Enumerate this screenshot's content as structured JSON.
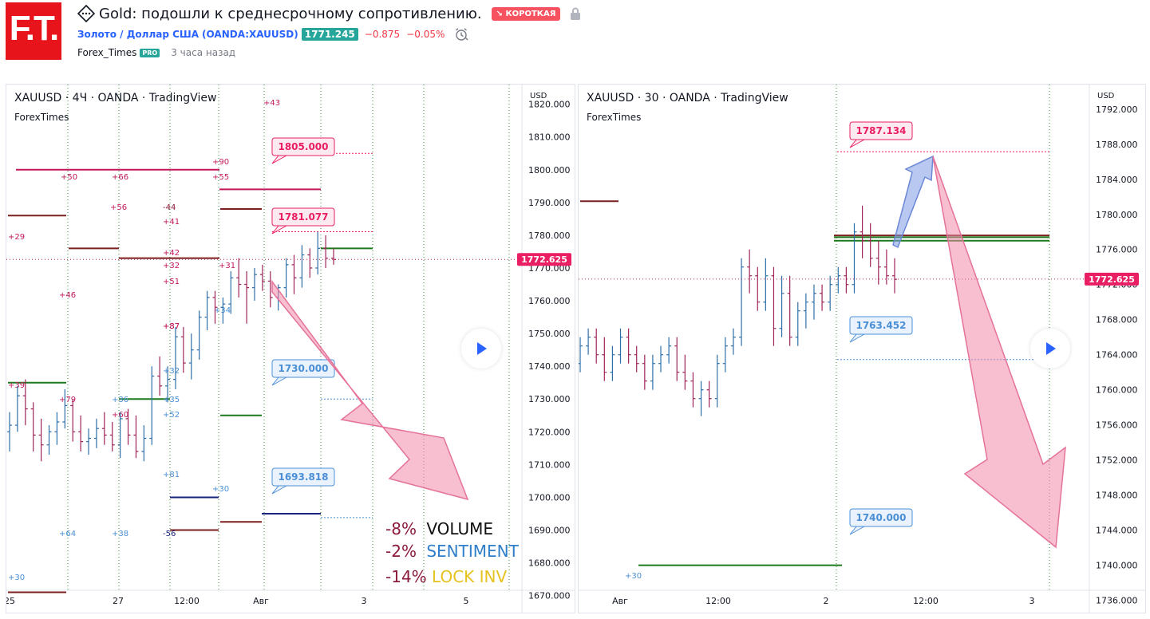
{
  "logo_text": "F.T.",
  "idea": {
    "title": "Gold: подошли к среднесрочному сопротивлению.",
    "badge": "↘ КОРОТКАЯ",
    "symbol_name": "Золото / Доллар США",
    "symbol_code": "(OANDA:XAUUSD)",
    "price": "1771.245",
    "change": "−0.875",
    "change_pct": "−0.05%",
    "author": "Forex_Times",
    "author_badge": "PRO",
    "published": "3 часа назад"
  },
  "colors": {
    "logo": "#e8141c",
    "badge_short": "#f7525f",
    "price_up": "#26a69a",
    "down": "#f23645",
    "link": "#2962ff",
    "arrow_pink": "#f18aaa",
    "arrow_blue": "#7f9be6"
  },
  "chart_data": [
    {
      "type": "candlestick",
      "title": "XAUUSD · 4Ч · OANDA · TradingView",
      "subtitle": "ForexTimes",
      "currency": "USD",
      "y_ticks": [
        "1820.000",
        "1810.000",
        "1800.000",
        "1790.000",
        "1780.000",
        "1770.000",
        "1760.000",
        "1750.000",
        "1740.000",
        "1730.000",
        "1720.000",
        "1710.000",
        "1700.000",
        "1690.000",
        "1680.000",
        "1670.000"
      ],
      "ylim": [
        1664.8,
        1826.0
      ],
      "x_ticks": [
        "25",
        "27",
        "12:00",
        "Авг",
        "3",
        "5"
      ],
      "last_price_label": "1772.625",
      "last_price": 1772.625,
      "price_callouts": [
        {
          "label": "1805.000",
          "value": 1805.0
        },
        {
          "label": "1781.077",
          "value": 1781.077
        },
        {
          "label": "1730.000",
          "value": 1730.0
        },
        {
          "label": "1693.818",
          "value": 1693.818
        }
      ],
      "level_numbers": [
        "+50",
        "+66",
        "+55",
        "+90",
        "+43",
        "+56",
        "-44",
        "+41",
        "+29",
        "+42",
        "+32",
        "+51",
        "+31",
        "+46",
        "+34",
        "+37",
        "+87",
        "+32",
        "+39",
        "+79",
        "+36",
        "+35",
        "+60",
        "+52",
        "+81",
        "+30",
        "+64",
        "+38",
        "-56",
        "+30"
      ],
      "stats": [
        {
          "pct": "-8%",
          "label": "VOLUME"
        },
        {
          "pct": "-2%",
          "label": "SENTIMENT"
        },
        {
          "pct": "-14%",
          "label": "LOCK INV"
        }
      ],
      "series": [
        {
          "name": "",
          "ohlc": [
            [
              1720,
              1726,
              1714,
              1722
            ],
            [
              1722,
              1734,
              1720,
              1731
            ],
            [
              1731,
              1736,
              1722,
              1727
            ],
            [
              1727,
              1729,
              1714,
              1719
            ],
            [
              1719,
              1724,
              1711,
              1716
            ],
            [
              1716,
              1722,
              1713,
              1720
            ],
            [
              1720,
              1726,
              1716,
              1723
            ],
            [
              1723,
              1733,
              1721,
              1728
            ],
            [
              1728,
              1730,
              1717,
              1720
            ],
            [
              1720,
              1725,
              1714,
              1717
            ],
            [
              1717,
              1721,
              1713,
              1718
            ],
            [
              1718,
              1724,
              1715,
              1721
            ],
            [
              1721,
              1726,
              1716,
              1719
            ],
            [
              1719,
              1723,
              1714,
              1716
            ],
            [
              1716,
              1726,
              1712,
              1724
            ],
            [
              1724,
              1727,
              1716,
              1719
            ],
            [
              1719,
              1725,
              1712,
              1714
            ],
            [
              1714,
              1722,
              1711,
              1718
            ],
            [
              1718,
              1740,
              1716,
              1737
            ],
            [
              1737,
              1743,
              1731,
              1734
            ],
            [
              1734,
              1740,
              1729,
              1736
            ],
            [
              1736,
              1752,
              1733,
              1749
            ],
            [
              1749,
              1752,
              1738,
              1741
            ],
            [
              1741,
              1750,
              1736,
              1745
            ],
            [
              1745,
              1757,
              1742,
              1755
            ],
            [
              1755,
              1763,
              1751,
              1761
            ],
            [
              1761,
              1763,
              1753,
              1758
            ],
            [
              1758,
              1761,
              1753,
              1759
            ],
            [
              1759,
              1769,
              1756,
              1767
            ],
            [
              1767,
              1773,
              1761,
              1765
            ],
            [
              1765,
              1769,
              1753,
              1764
            ],
            [
              1764,
              1770,
              1760,
              1768
            ],
            [
              1768,
              1771,
              1763,
              1766
            ],
            [
              1766,
              1769,
              1758,
              1761
            ],
            [
              1761,
              1765,
              1757,
              1764
            ],
            [
              1764,
              1773,
              1761,
              1771
            ],
            [
              1771,
              1774,
              1762,
              1767
            ],
            [
              1767,
              1777,
              1764,
              1774
            ],
            [
              1774,
              1776,
              1767,
              1770
            ],
            [
              1770,
              1781,
              1768,
              1776
            ],
            [
              1776,
              1780,
              1770,
              1773
            ],
            [
              1773,
              1776,
              1771,
              1772.6
            ]
          ]
        }
      ],
      "levels": [
        {
          "value": 1800.0,
          "color": "#c2185b"
        },
        {
          "value": 1794.0,
          "color": "#c2185b"
        },
        {
          "value": 1786.0,
          "color": "#7b1f1f"
        },
        {
          "value": 1788.0,
          "color": "#7b1f1f"
        },
        {
          "value": 1776.0,
          "color": "#7b1f1f"
        },
        {
          "value": 1773.0,
          "color": "#7b1f1f"
        },
        {
          "value": 1776.0,
          "color": "#1b7a1b"
        },
        {
          "value": 1735.0,
          "color": "#1b7a1b"
        },
        {
          "value": 1725.0,
          "color": "#1b7a1b"
        },
        {
          "value": 1730.0,
          "color": "#1b7a1b"
        },
        {
          "value": 1700.0,
          "color": "#1a237e"
        },
        {
          "value": 1695.0,
          "color": "#1a237e"
        },
        {
          "value": 1690.0,
          "color": "#7b1f1f"
        },
        {
          "value": 1692.5,
          "color": "#7b1f1f"
        },
        {
          "value": 1671.0,
          "color": "#7b1f1f"
        }
      ]
    },
    {
      "type": "candlestick",
      "title": "XAUUSD · 30 · OANDA · TradingView",
      "subtitle": "ForexTimes",
      "currency": "USD",
      "y_ticks": [
        "1792.000",
        "1788.000",
        "1784.000",
        "1780.000",
        "1776.000",
        "1772.000",
        "1768.000",
        "1764.000",
        "1760.000",
        "1756.000",
        "1752.000",
        "1748.000",
        "1744.000",
        "1740.000",
        "1736.000"
      ],
      "ylim": [
        1734.6,
        1794.8
      ],
      "x_ticks": [
        "Авг",
        "12:00",
        "2",
        "12:00",
        "3"
      ],
      "last_price_label": "1772.625",
      "last_price": 1772.625,
      "price_callouts": [
        {
          "label": "1787.134",
          "value": 1787.134
        },
        {
          "label": "1763.452",
          "value": 1763.452
        },
        {
          "label": "1740.000",
          "value": 1740.0
        }
      ],
      "level_numbers": [
        "+30"
      ],
      "series": [
        {
          "name": "",
          "ohlc": [
            [
              1763,
              1766,
              1762,
              1765
            ],
            [
              1765,
              1767,
              1764,
              1766
            ],
            [
              1766,
              1767,
              1763,
              1764
            ],
            [
              1764,
              1766,
              1761,
              1762
            ],
            [
              1762,
              1765,
              1761,
              1764
            ],
            [
              1764,
              1767,
              1763,
              1766
            ],
            [
              1766,
              1767,
              1763,
              1764
            ],
            [
              1764,
              1765,
              1762,
              1763
            ],
            [
              1763,
              1764,
              1760,
              1761
            ],
            [
              1761,
              1764,
              1760,
              1763
            ],
            [
              1763,
              1765,
              1762,
              1764
            ],
            [
              1764,
              1766,
              1763,
              1765
            ],
            [
              1765,
              1766,
              1761,
              1762
            ],
            [
              1762,
              1764,
              1760,
              1761
            ],
            [
              1761,
              1762,
              1758,
              1759
            ],
            [
              1759,
              1761,
              1757,
              1760
            ],
            [
              1760,
              1761,
              1758,
              1759
            ],
            [
              1759,
              1764,
              1758,
              1763
            ],
            [
              1763,
              1766,
              1762,
              1765
            ],
            [
              1765,
              1767,
              1764,
              1766
            ],
            [
              1766,
              1775,
              1765,
              1774
            ],
            [
              1774,
              1776,
              1771,
              1773
            ],
            [
              1773,
              1774,
              1769,
              1770
            ],
            [
              1770,
              1775,
              1769,
              1773
            ],
            [
              1773,
              1774,
              1765,
              1767
            ],
            [
              1767,
              1773,
              1766,
              1771
            ],
            [
              1771,
              1773,
              1765,
              1766
            ],
            [
              1766,
              1770,
              1765,
              1769
            ],
            [
              1769,
              1771,
              1767,
              1770
            ],
            [
              1770,
              1772,
              1768,
              1771
            ],
            [
              1771,
              1772,
              1769,
              1770
            ],
            [
              1770,
              1773,
              1769,
              1772
            ],
            [
              1772,
              1774,
              1771,
              1773
            ],
            [
              1773,
              1774,
              1771,
              1772
            ],
            [
              1772,
              1779,
              1771,
              1778
            ],
            [
              1778,
              1781,
              1775,
              1777
            ],
            [
              1777,
              1779,
              1774,
              1775
            ],
            [
              1775,
              1777,
              1772,
              1774
            ],
            [
              1774,
              1776,
              1772,
              1773
            ],
            [
              1773,
              1775,
              1771,
              1772.6
            ]
          ]
        }
      ],
      "levels": [
        {
          "value": 1781.5,
          "color": "#7b1f1f"
        },
        {
          "value": 1777.4,
          "color": "#1b7a1b"
        },
        {
          "value": 1777.0,
          "color": "#1b7a1b"
        },
        {
          "value": 1740.0,
          "color": "#1b7a1b"
        },
        {
          "value": 1777.6,
          "color": "#7b1f1f"
        }
      ]
    }
  ]
}
